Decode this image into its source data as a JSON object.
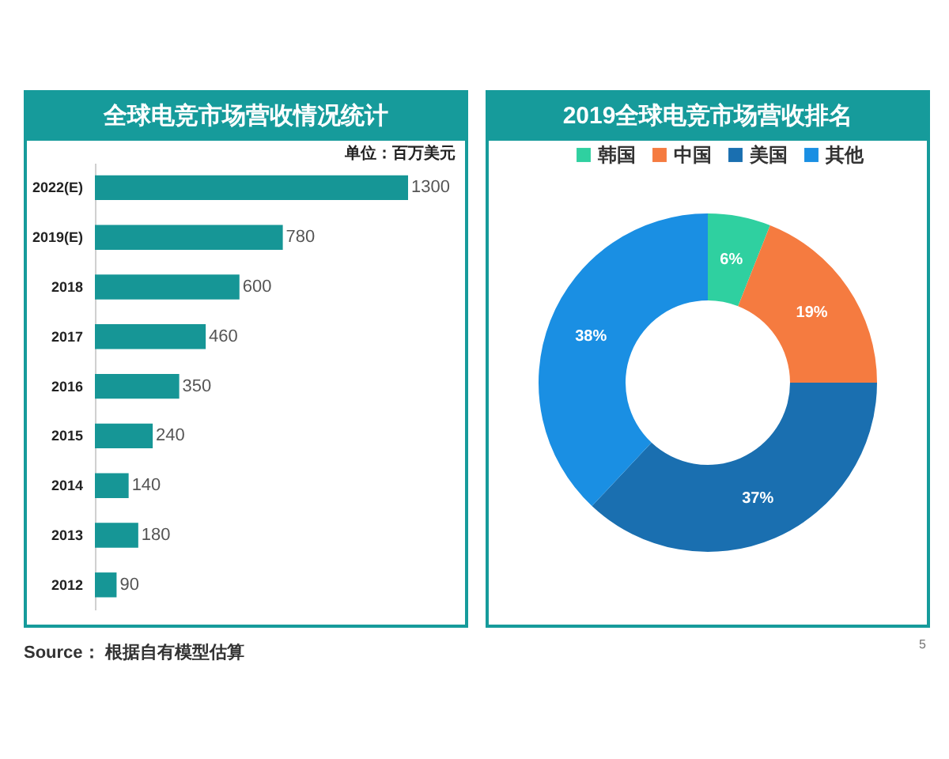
{
  "chart_data": [
    {
      "type": "bar",
      "title": "全球电竞市场营收情况统计",
      "subtitle": "单位：百万美元",
      "orientation": "horizontal",
      "categories": [
        "2022(E)",
        "2019(E)",
        "2018",
        "2017",
        "2016",
        "2015",
        "2014",
        "2013",
        "2012"
      ],
      "values": [
        1300,
        780,
        600,
        460,
        350,
        240,
        140,
        180,
        90
      ],
      "color": "#169696",
      "data_labels": true,
      "tick_labels": "y",
      "annotations": [
        "Source： 根据自有模型估算"
      ]
    },
    {
      "type": "donut",
      "title": "2019全球电竞市场营收排名",
      "categories": [
        "韩国",
        "中国",
        "美国",
        "其他"
      ],
      "values": [
        6,
        19,
        37,
        38
      ],
      "colors": [
        "#2fd0a0",
        "#f57b40",
        "#1a6fb0",
        "#1a8fe3"
      ],
      "value_labels": [
        "6%",
        "19%",
        "37%",
        "38%"
      ],
      "legend": "top",
      "annotations": [
        "5"
      ]
    }
  ]
}
